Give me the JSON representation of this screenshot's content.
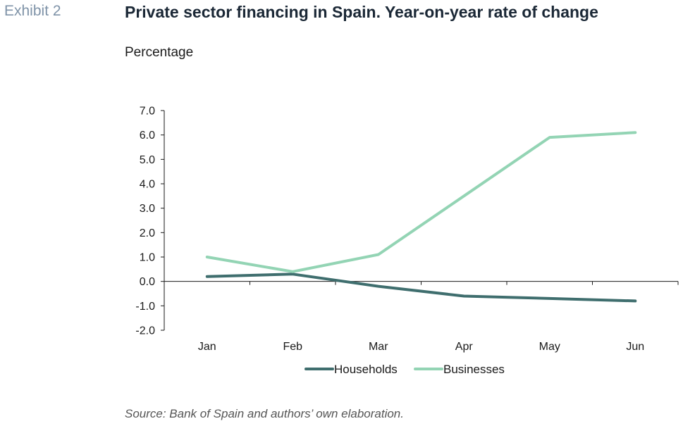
{
  "header": {
    "exhibit": "Exhibit 2",
    "title": "Private sector financing in Spain. Year-on-year rate of change",
    "subtitle": "Percentage"
  },
  "footer": {
    "source": "Source: Bank of Spain and authors’ own elaboration."
  },
  "chart_data": {
    "type": "line",
    "title": "Private sector financing in Spain. Year-on-year rate of change",
    "subtitle": "Percentage",
    "xlabel": "",
    "ylabel": "",
    "categories": [
      "Jan",
      "Feb",
      "Mar",
      "Apr",
      "May",
      "Jun"
    ],
    "ylim": [
      -2.0,
      7.0
    ],
    "yticks": [
      "7.0",
      "6.0",
      "5.0",
      "4.0",
      "3.0",
      "2.0",
      "1.0",
      "0.0",
      "-1.0",
      "-2.0"
    ],
    "grid": false,
    "legend_position": "bottom",
    "series": [
      {
        "name": "Households",
        "color": "#3f6e6e",
        "values": [
          0.2,
          0.3,
          -0.2,
          -0.6,
          -0.7,
          -0.8
        ]
      },
      {
        "name": "Businesses",
        "color": "#93d4b4",
        "values": [
          1.0,
          0.4,
          1.1,
          3.5,
          5.9,
          6.1
        ]
      }
    ]
  }
}
